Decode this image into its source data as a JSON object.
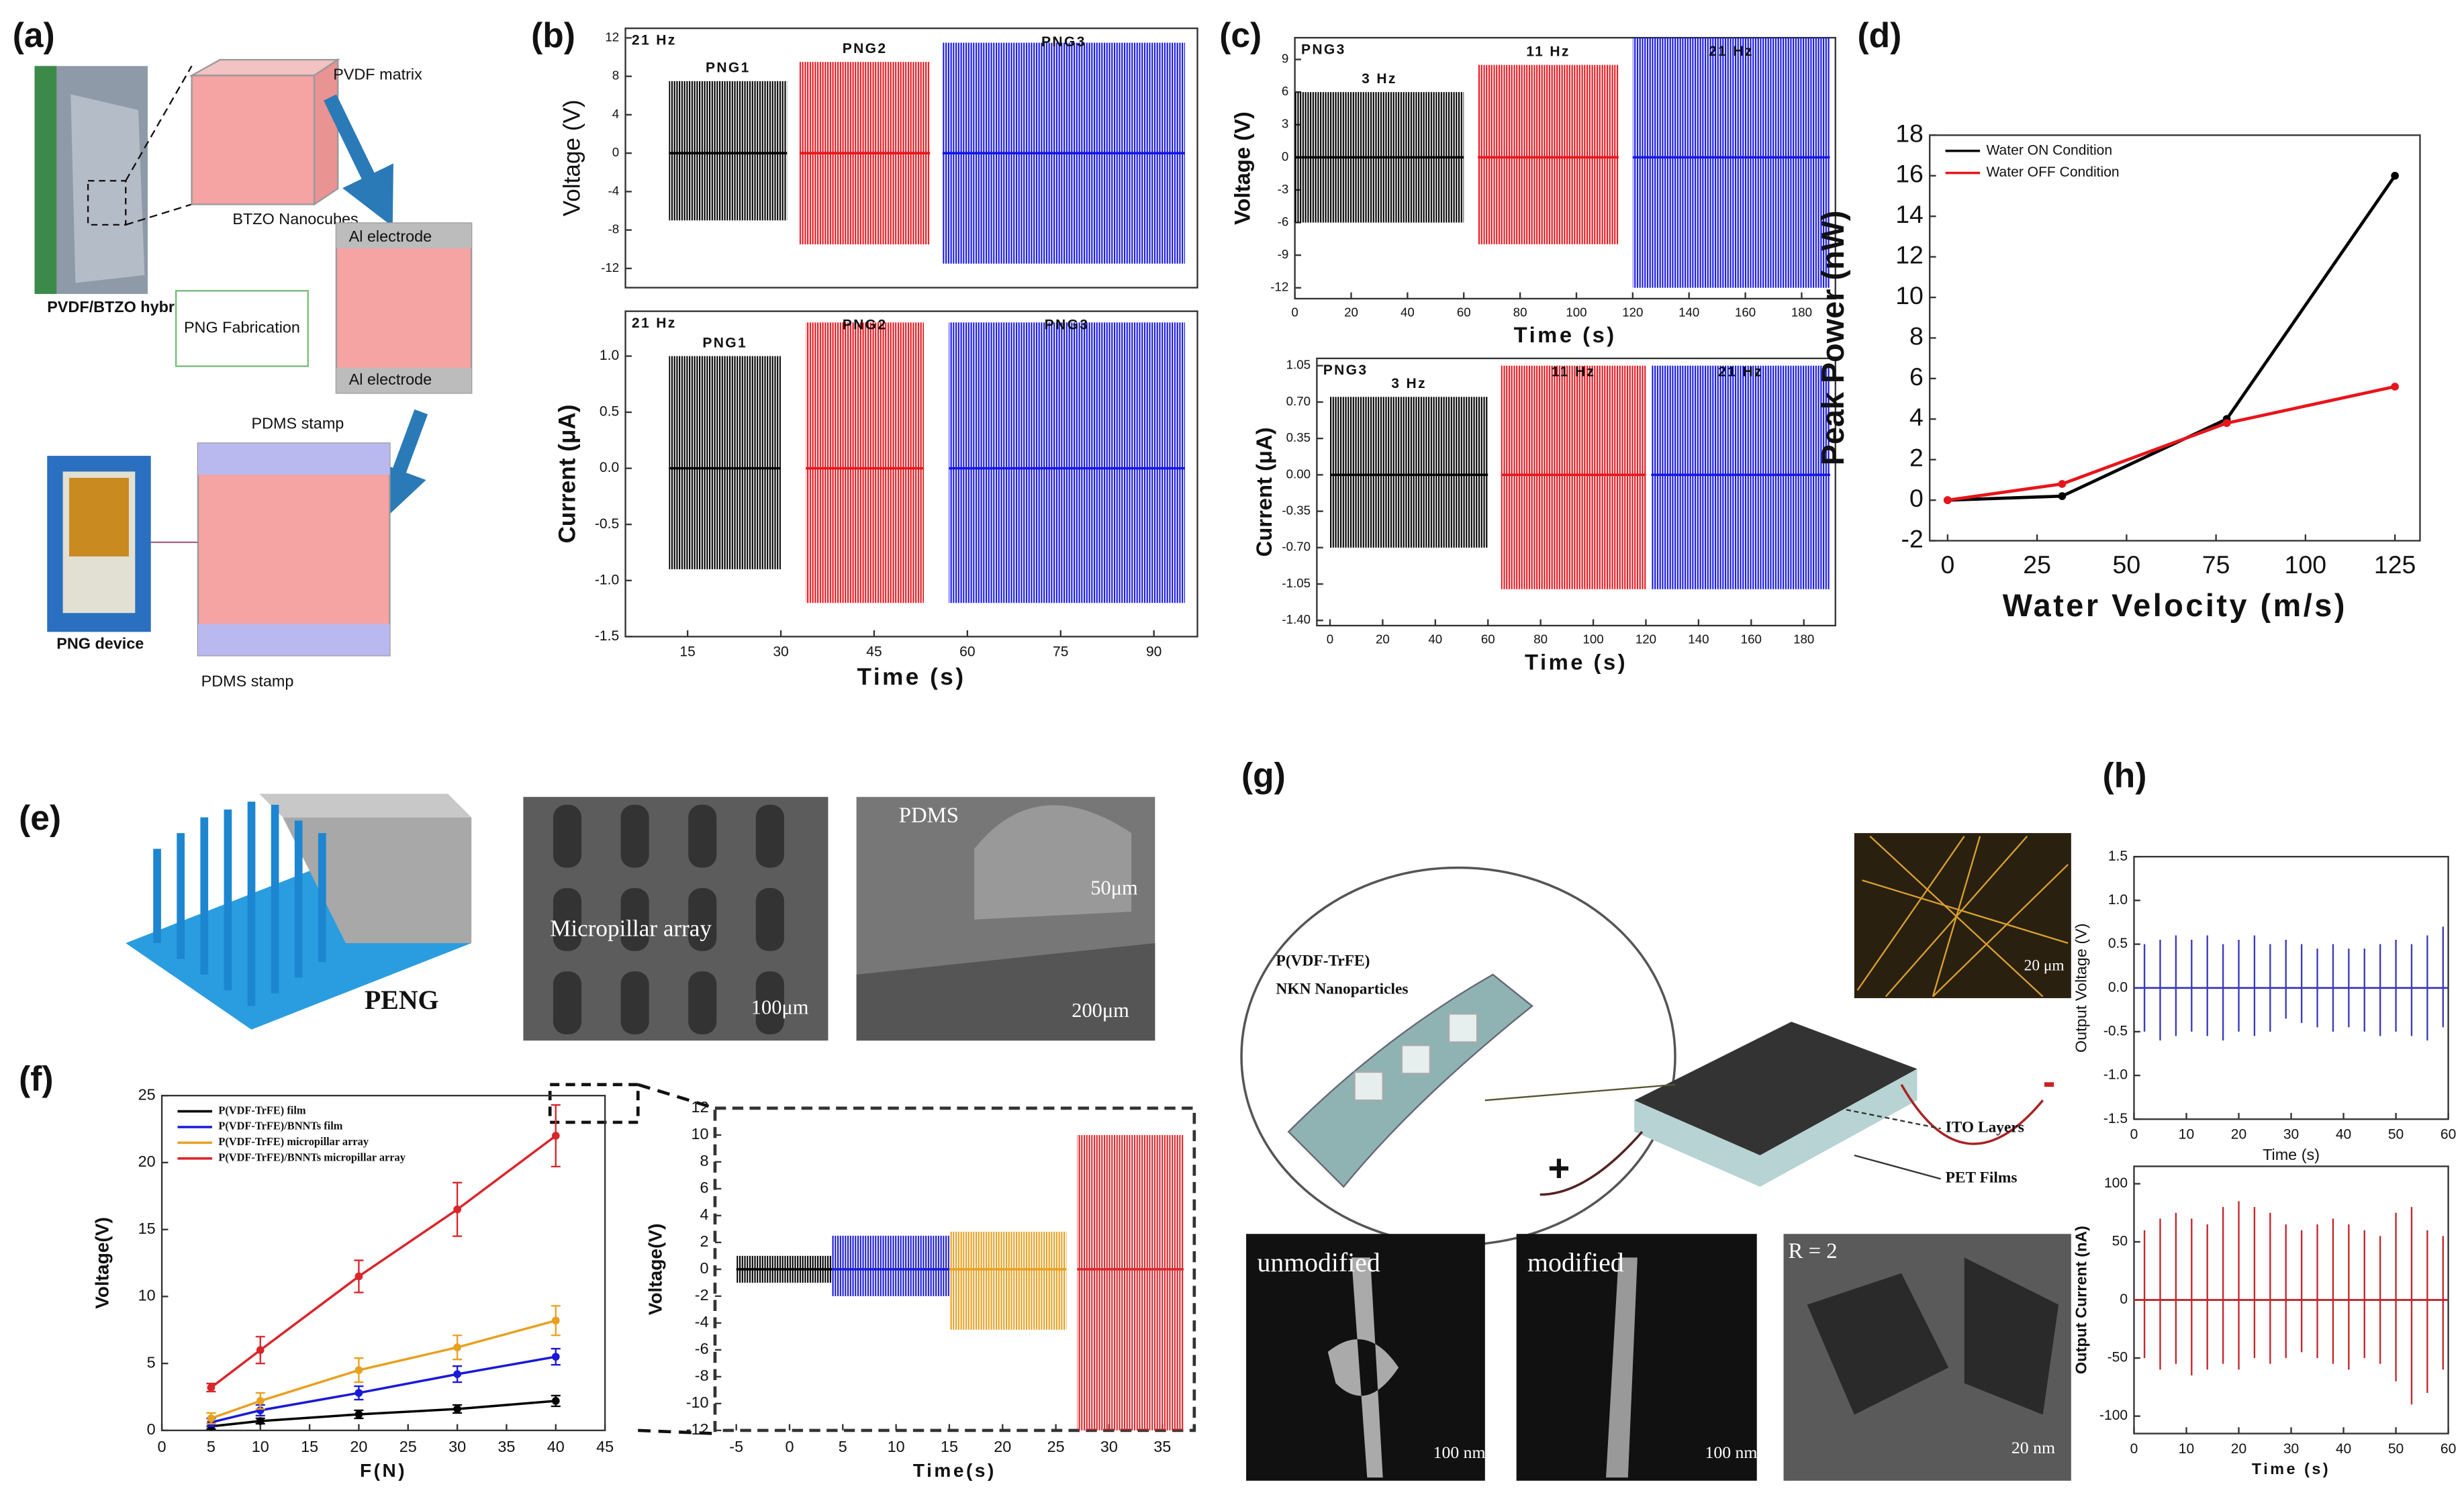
{
  "figure": {
    "panel_labels": [
      "(a)",
      "(b)",
      "(c)",
      "(d)",
      "(e)",
      "(f)",
      "(g)",
      "(h)"
    ],
    "a": {
      "labels": [
        "PVDF matrix",
        "BTZO Nanocubes",
        "PVDF/BTZO hybrid film",
        "PNG Fabrication",
        "Al electrode",
        "Al electrode",
        "PDMS stamp",
        "PDMS stamp",
        "PNG device"
      ]
    },
    "e": {
      "labels": [
        "PENG",
        "Micropillar array",
        "100μm",
        "PDMS",
        "50μm",
        "200μm"
      ]
    },
    "g": {
      "labels": [
        "P(VDF-TrFE)",
        "NKN Nanoparticles",
        "ITO Layers",
        "PET Films",
        "+",
        "-",
        "20 μm",
        "unmodified",
        "modified",
        "R = 2",
        "100 nm",
        "100 nm",
        "20 nm"
      ]
    }
  },
  "chart_data": [
    {
      "type": "signal",
      "annotation": "21 Hz",
      "ylabel": "Voltage (V)",
      "xlim": [
        5,
        97
      ],
      "ylim": [
        -14,
        13
      ],
      "yticks": [
        -12,
        -8,
        -4,
        0,
        4,
        8,
        12
      ],
      "series": [
        {
          "name": "PNG1",
          "color": "#000000",
          "x": [
            12,
            31
          ],
          "values": [
            -7,
            7.5
          ]
        },
        {
          "name": "PNG2",
          "color": "#e8141b",
          "x": [
            33,
            54
          ],
          "values": [
            -9.5,
            9.5
          ]
        },
        {
          "name": "PNG3",
          "color": "#1515e6",
          "x": [
            56,
            95
          ],
          "values": [
            -11.5,
            11.5
          ]
        }
      ]
    },
    {
      "type": "signal",
      "annotation": "21 Hz",
      "xlabel": "Time (s)",
      "ylabel": "Current (μA)",
      "xlim": [
        5,
        97
      ],
      "xticks": [
        15,
        30,
        45,
        60,
        75,
        90
      ],
      "ylim": [
        -1.5,
        1.4
      ],
      "yticks": [
        -1.5,
        {
          "value": -1,
          "label": "-1.0"
        },
        -0.5,
        {
          "value": 0,
          "label": "0.0"
        },
        0.5,
        {
          "value": 1,
          "label": "1.0"
        }
      ],
      "series": [
        {
          "name": "PNG1",
          "color": "#000000",
          "x": [
            12,
            30
          ],
          "values": [
            -0.9,
            1.0
          ]
        },
        {
          "name": "PNG2",
          "color": "#e8141b",
          "x": [
            34,
            53
          ],
          "values": [
            -1.2,
            1.3
          ]
        },
        {
          "name": "PNG3",
          "color": "#1515e6",
          "x": [
            57,
            95
          ],
          "values": [
            -1.2,
            1.3
          ]
        }
      ]
    },
    {
      "type": "signal",
      "annotation": "PNG3",
      "xlabel": "Time (s)",
      "ylabel": "Voltage (V)",
      "xlim": [
        0,
        192
      ],
      "xticks": [
        0,
        20,
        40,
        60,
        80,
        100,
        120,
        140,
        160,
        180
      ],
      "ylim": [
        -13,
        11
      ],
      "yticks": [
        -12,
        -9,
        -6,
        -3,
        0,
        3,
        6,
        9
      ],
      "series": [
        {
          "name": "3 Hz",
          "color": "#000000",
          "x": [
            0,
            60
          ],
          "values": [
            -6,
            6
          ]
        },
        {
          "name": "11 Hz",
          "color": "#e8141b",
          "x": [
            65,
            115
          ],
          "values": [
            -8,
            8.5
          ]
        },
        {
          "name": "21 Hz",
          "color": "#1515e6",
          "x": [
            120,
            190
          ],
          "values": [
            -12,
            11
          ]
        }
      ]
    },
    {
      "type": "signal",
      "annotation": "PNG3",
      "xlabel": "Time (s)",
      "ylabel": "Current (μA)",
      "xlim": [
        -5,
        192
      ],
      "xticks": [
        0,
        20,
        40,
        60,
        80,
        100,
        120,
        140,
        160,
        180
      ],
      "ylim": [
        -1.45,
        1.12
      ],
      "yticks": [
        {
          "value": -1.4,
          "label": "-1.40"
        },
        -1.05,
        {
          "value": -0.7,
          "label": "-0.70"
        },
        -0.35,
        {
          "value": 0,
          "label": "0.00"
        },
        0.35,
        {
          "value": 0.7,
          "label": "0.70"
        },
        1.05
      ],
      "series": [
        {
          "name": "3 Hz",
          "color": "#000000",
          "x": [
            0,
            60
          ],
          "values": [
            -0.7,
            0.75
          ]
        },
        {
          "name": "11 Hz",
          "color": "#e8141b",
          "x": [
            65,
            120
          ],
          "values": [
            -1.1,
            1.05
          ]
        },
        {
          "name": "21 Hz",
          "color": "#1515e6",
          "x": [
            122,
            190
          ],
          "values": [
            -1.1,
            1.05
          ]
        }
      ]
    },
    {
      "type": "line",
      "xlabel": "Water Velocity (m/s)",
      "ylabel": "Peak Power (nW)",
      "legend": "upper left",
      "xlim": [
        -5,
        132
      ],
      "xticks": [
        0,
        25,
        50,
        75,
        100,
        125
      ],
      "ylim": [
        -2,
        18
      ],
      "yticks": [
        -2,
        0,
        2,
        4,
        6,
        8,
        10,
        12,
        14,
        16,
        18
      ],
      "series": [
        {
          "name": "Water ON Condition",
          "color": "#000000",
          "x": [
            0,
            32,
            78,
            125
          ],
          "values": [
            0,
            0.2,
            4,
            16
          ]
        },
        {
          "name": "Water OFF Condition",
          "color": "#e8141b",
          "x": [
            0,
            32,
            78,
            125
          ],
          "values": [
            0,
            0.8,
            3.8,
            5.6
          ]
        }
      ]
    },
    {
      "type": "line",
      "xlabel": "F(N)",
      "ylabel": "Voltage(V)",
      "legend": "upper left",
      "xlim": [
        0,
        45
      ],
      "xticks": [
        0,
        5,
        10,
        15,
        20,
        25,
        30,
        35,
        40,
        45
      ],
      "ylim": [
        0,
        25
      ],
      "yticks": [
        0,
        5,
        10,
        15,
        20,
        25
      ],
      "series": [
        {
          "name": "P(VDF-TrFE) film",
          "color": "#000000",
          "x": [
            5,
            10,
            20,
            30,
            40
          ],
          "values": [
            0.3,
            0.7,
            1.2,
            1.6,
            2.2
          ],
          "errors": [
            0.2,
            0.2,
            0.3,
            0.3,
            0.4
          ]
        },
        {
          "name": "P(VDF-TrFE)/BNNTs film",
          "color": "#1a1ad6",
          "x": [
            5,
            10,
            20,
            30,
            40
          ],
          "values": [
            0.6,
            1.5,
            2.8,
            4.2,
            5.5
          ],
          "errors": [
            0.3,
            0.4,
            0.5,
            0.6,
            0.6
          ]
        },
        {
          "name": "P(VDF-TrFE) micropillar array",
          "color": "#e8a020",
          "x": [
            5,
            10,
            20,
            30,
            40
          ],
          "values": [
            0.9,
            2.2,
            4.5,
            6.2,
            8.2
          ],
          "errors": [
            0.4,
            0.6,
            0.9,
            0.9,
            1.1
          ]
        },
        {
          "name": "P(VDF-TrFE)/BNNTs micropillar array",
          "color": "#d9262b",
          "x": [
            5,
            10,
            20,
            30,
            40
          ],
          "values": [
            3.2,
            6,
            11.5,
            16.5,
            22
          ],
          "errors": [
            0.3,
            1,
            1.2,
            2,
            2.3
          ]
        }
      ]
    },
    {
      "type": "signal",
      "xlabel": "Time(s)",
      "ylabel": "Voltage(V)",
      "xlim": [
        -7,
        38
      ],
      "xticks": [
        -5,
        0,
        5,
        10,
        15,
        20,
        25,
        30,
        35
      ],
      "ylim": [
        -12,
        12
      ],
      "yticks": [
        -12,
        -10,
        -8,
        -6,
        -4,
        -2,
        0,
        2,
        4,
        6,
        8,
        10,
        12
      ],
      "series": [
        {
          "color": "#000000",
          "x": [
            -5,
            4
          ],
          "values": [
            -1,
            1
          ]
        },
        {
          "color": "#1a1ad6",
          "x": [
            4,
            15
          ],
          "values": [
            -2,
            2.5
          ]
        },
        {
          "color": "#e8a020",
          "x": [
            15,
            26
          ],
          "values": [
            -4.5,
            2.8
          ]
        },
        {
          "color": "#d9262b",
          "x": [
            27,
            37
          ],
          "values": [
            -12,
            10
          ]
        }
      ]
    },
    {
      "type": "spike",
      "xlabel": "Time (s)",
      "ylabel": "Output Voltage (V)",
      "xlim": [
        0,
        60
      ],
      "xticks": [
        0,
        10,
        20,
        30,
        40,
        50,
        60
      ],
      "ylim": [
        -1.5,
        1.5
      ],
      "yticks": [
        -1.5,
        {
          "value": -1,
          "label": "-1.0"
        },
        -0.5,
        {
          "value": 0,
          "label": "0.0"
        },
        0.5,
        {
          "value": 1,
          "label": "1.0"
        },
        1.5
      ],
      "series": [
        {
          "color": "#3a3ab8",
          "x": [
            2,
            5,
            8,
            11,
            14,
            17,
            20,
            23,
            26,
            29,
            32,
            35,
            38,
            41,
            44,
            47,
            50,
            53,
            56,
            59
          ],
          "values": [
            0.5,
            0.55,
            0.6,
            0.55,
            0.6,
            0.5,
            0.55,
            0.6,
            0.5,
            0.55,
            0.5,
            0.45,
            0.5,
            0.45,
            0.45,
            0.5,
            0.55,
            0.5,
            0.6,
            0.7
          ],
          "lows": [
            -0.5,
            -0.6,
            -0.55,
            -0.5,
            -0.55,
            -0.6,
            -0.5,
            -0.55,
            -0.5,
            -0.35,
            -0.4,
            -0.45,
            -0.5,
            -0.45,
            -0.5,
            -0.55,
            -0.5,
            -0.55,
            -0.6,
            -0.45
          ]
        }
      ]
    },
    {
      "type": "spike",
      "xlabel": "Time (s)",
      "ylabel": "Output Current (nA)",
      "xlim": [
        0,
        60
      ],
      "xticks": [
        0,
        10,
        20,
        30,
        40,
        50,
        60
      ],
      "ylim": [
        -115,
        115
      ],
      "yticks": [
        -100,
        -50,
        0,
        50,
        100
      ],
      "series": [
        {
          "color": "#c0272d",
          "x": [
            2,
            5,
            8,
            11,
            14,
            17,
            20,
            23,
            26,
            29,
            32,
            35,
            38,
            41,
            44,
            47,
            50,
            53,
            56,
            59
          ],
          "values": [
            60,
            70,
            75,
            70,
            65,
            80,
            85,
            80,
            75,
            65,
            60,
            65,
            70,
            65,
            60,
            55,
            75,
            80,
            60,
            55
          ],
          "lows": [
            -50,
            -60,
            -55,
            -65,
            -60,
            -55,
            -60,
            -50,
            -55,
            -50,
            -45,
            -50,
            -55,
            -60,
            -50,
            -55,
            -70,
            -90,
            -80,
            -60
          ]
        }
      ]
    }
  ]
}
